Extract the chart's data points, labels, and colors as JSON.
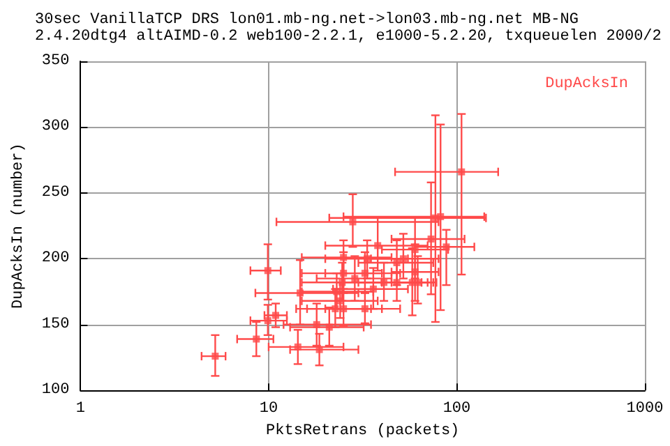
{
  "chart_data": {
    "type": "scatter",
    "title": "30sec VanillaTCP DRS lon01.mb-ng.net->lon03.mb-ng.net MB-NG",
    "subtitle": "2.4.20dtg4 altAIMD-0.2 web100-2.2.1, e1000-5.2.20, txqueuelen 2000/2",
    "xlabel": "PktsRetrans (packets)",
    "ylabel": "DupAcksIn (number)",
    "log": "x",
    "xlim": [
      1,
      1000
    ],
    "xticks": [
      1,
      10,
      100,
      1000
    ],
    "ylim": [
      100,
      350
    ],
    "yticks": [
      100,
      150,
      200,
      250,
      300,
      350
    ],
    "grid": true,
    "legend": "top right",
    "marker": "square",
    "series": [
      {
        "name": "DupAcksIn",
        "color": "#ff4a4a",
        "x": [
          5.2,
          8.6,
          9.9,
          9.9,
          10.9,
          14.7,
          14.3,
          18,
          18.6,
          106,
          77,
          82,
          73,
          88,
          28,
          38,
          52,
          48,
          60,
          60,
          58,
          62,
          48,
          41,
          36,
          32.5,
          25,
          24.6,
          33.4,
          25,
          28.7,
          24,
          22.6,
          32.5,
          21,
          25,
          23
        ],
        "values": [
          126,
          139,
          191,
          153,
          157,
          174,
          133,
          150,
          131,
          266,
          231,
          232,
          215,
          209,
          228,
          210,
          200,
          197,
          207,
          190,
          182,
          182,
          182,
          182,
          177,
          189,
          189,
          182,
          200,
          201,
          185,
          168,
          162,
          162,
          148,
          162,
          175
        ],
        "xerrors": [
          [
            4.4,
            5.9
          ],
          [
            6.8,
            10.6
          ],
          [
            8,
            11.6
          ],
          [
            8,
            12.5
          ],
          [
            9.5,
            12.5
          ],
          [
            8.5,
            30
          ],
          [
            10,
            25
          ],
          [
            12,
            35
          ],
          [
            13,
            30
          ],
          [
            47,
            166
          ],
          [
            21,
            143
          ],
          [
            25,
            140
          ],
          [
            45,
            110
          ],
          [
            60,
            124
          ],
          [
            11,
            80
          ],
          [
            20,
            70
          ],
          [
            35,
            80
          ],
          [
            30,
            75
          ],
          [
            40,
            90
          ],
          [
            45,
            80
          ],
          [
            45,
            75
          ],
          [
            48,
            78
          ],
          [
            30,
            70
          ],
          [
            25,
            65
          ],
          [
            22,
            55
          ],
          [
            20,
            50
          ],
          [
            15,
            40
          ],
          [
            15,
            40
          ],
          [
            20,
            55
          ],
          [
            15,
            45
          ],
          [
            18,
            45
          ],
          [
            15,
            38
          ],
          [
            14,
            35
          ],
          [
            20,
            50
          ],
          [
            13,
            32
          ],
          [
            16,
            40
          ],
          [
            15,
            36
          ]
        ],
        "errors": [
          [
            111,
            142
          ],
          [
            126,
            152
          ],
          [
            169,
            211
          ],
          [
            142,
            165
          ],
          [
            148,
            166
          ],
          [
            150,
            199
          ],
          [
            120,
            146
          ],
          [
            134,
            166
          ],
          [
            119,
            143
          ],
          [
            188,
            310
          ],
          [
            152,
            309
          ],
          [
            161,
            302
          ],
          [
            173,
            258
          ],
          [
            180,
            222
          ],
          [
            209,
            249
          ],
          [
            191,
            231
          ],
          [
            185,
            219
          ],
          [
            180,
            214
          ],
          [
            185,
            231
          ],
          [
            168,
            211
          ],
          [
            157,
            208
          ],
          [
            166,
            202
          ],
          [
            168,
            197
          ],
          [
            168,
            197
          ],
          [
            162,
            193
          ],
          [
            174,
            205
          ],
          [
            174,
            205
          ],
          [
            168,
            197
          ],
          [
            185,
            214
          ],
          [
            189,
            214
          ],
          [
            168,
            202
          ],
          [
            155,
            182
          ],
          [
            148,
            177
          ],
          [
            151,
            174
          ],
          [
            134,
            163
          ],
          [
            149,
            177
          ],
          [
            162,
            189
          ]
        ]
      }
    ]
  }
}
